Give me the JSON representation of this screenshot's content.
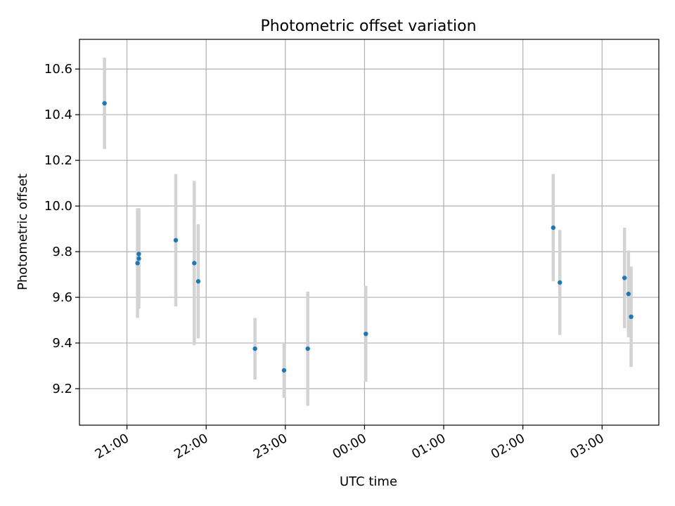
{
  "chart_data": {
    "type": "scatter",
    "title": "Photometric offset variation",
    "xlabel": "UTC time",
    "ylabel": "Photometric offset",
    "x_range": [
      "20:24",
      "03:43"
    ],
    "x_ticks": [
      "21:00",
      "22:00",
      "23:00",
      "00:00",
      "01:00",
      "02:00",
      "03:00"
    ],
    "ylim": [
      9.04,
      10.73
    ],
    "y_ticks": [
      "9.2",
      "9.4",
      "9.6",
      "9.8",
      "10.0",
      "10.2",
      "10.4",
      "10.6"
    ],
    "grid": true,
    "points": [
      {
        "t": "20:43",
        "y": 10.45,
        "err": 0.2
      },
      {
        "t": "21:08",
        "y": 9.75,
        "err": 0.24
      },
      {
        "t": "21:09",
        "y": 9.77,
        "err": 0.22
      },
      {
        "t": "21:09",
        "y": 9.79,
        "err": 0.2
      },
      {
        "t": "21:37",
        "y": 9.85,
        "err": 0.29
      },
      {
        "t": "21:51",
        "y": 9.75,
        "err": 0.36
      },
      {
        "t": "21:54",
        "y": 9.67,
        "err": 0.25
      },
      {
        "t": "22:37",
        "y": 9.375,
        "err": 0.135
      },
      {
        "t": "22:59",
        "y": 9.28,
        "err": 0.12
      },
      {
        "t": "23:17",
        "y": 9.375,
        "err": 0.25
      },
      {
        "t": "00:01",
        "y": 9.44,
        "err": 0.21
      },
      {
        "t": "02:23",
        "y": 9.905,
        "err": 0.235
      },
      {
        "t": "02:28",
        "y": 9.665,
        "err": 0.23
      },
      {
        "t": "03:17",
        "y": 9.685,
        "err": 0.22
      },
      {
        "t": "03:20",
        "y": 9.615,
        "err": 0.19
      },
      {
        "t": "03:22",
        "y": 9.515,
        "err": 0.22
      }
    ],
    "colors": {
      "point": "#1f77b4",
      "errorbar": "#d3d3d3",
      "grid": "#b0b0b0"
    }
  }
}
